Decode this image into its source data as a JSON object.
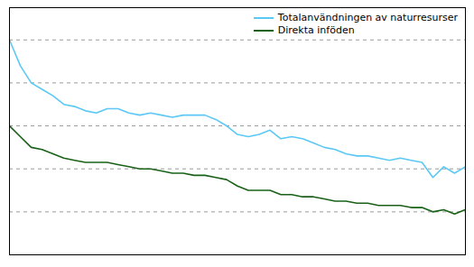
{
  "chart_data": {
    "type": "line",
    "x": [
      1970,
      1971,
      1972,
      1973,
      1974,
      1975,
      1976,
      1977,
      1978,
      1979,
      1980,
      1981,
      1982,
      1983,
      1984,
      1985,
      1986,
      1987,
      1988,
      1989,
      1990,
      1991,
      1992,
      1993,
      1994,
      1995,
      1996,
      1997,
      1998,
      1999,
      2000,
      2001,
      2002,
      2003,
      2004,
      2005,
      2006,
      2007,
      2008,
      2009,
      2010,
      2011,
      2012
    ],
    "series": [
      {
        "name": "Totalanvändningen av naturresurser",
        "color": "#5bc8f5",
        "values": [
          1.0,
          0.88,
          0.8,
          0.77,
          0.74,
          0.7,
          0.69,
          0.67,
          0.66,
          0.68,
          0.68,
          0.66,
          0.65,
          0.66,
          0.65,
          0.64,
          0.65,
          0.65,
          0.65,
          0.63,
          0.6,
          0.56,
          0.55,
          0.56,
          0.58,
          0.54,
          0.55,
          0.54,
          0.52,
          0.5,
          0.49,
          0.47,
          0.46,
          0.46,
          0.45,
          0.44,
          0.45,
          0.44,
          0.43,
          0.36,
          0.41,
          0.38,
          0.41
        ]
      },
      {
        "name": "Direkta inföden",
        "color": "#1a6118",
        "values": [
          0.6,
          0.55,
          0.5,
          0.49,
          0.47,
          0.45,
          0.44,
          0.43,
          0.43,
          0.43,
          0.42,
          0.41,
          0.4,
          0.4,
          0.39,
          0.38,
          0.38,
          0.37,
          0.37,
          0.36,
          0.35,
          0.32,
          0.3,
          0.3,
          0.3,
          0.28,
          0.28,
          0.27,
          0.27,
          0.26,
          0.25,
          0.25,
          0.24,
          0.24,
          0.23,
          0.23,
          0.23,
          0.22,
          0.22,
          0.2,
          0.21,
          0.19,
          0.21
        ]
      }
    ],
    "xlim": [
      1970,
      2012
    ],
    "ylim": [
      0.0,
      1.15
    ],
    "yticks": [
      0.2,
      0.4,
      0.6,
      0.8,
      1.0
    ],
    "grid": true,
    "legend": "upper right",
    "tick_labels": false
  }
}
